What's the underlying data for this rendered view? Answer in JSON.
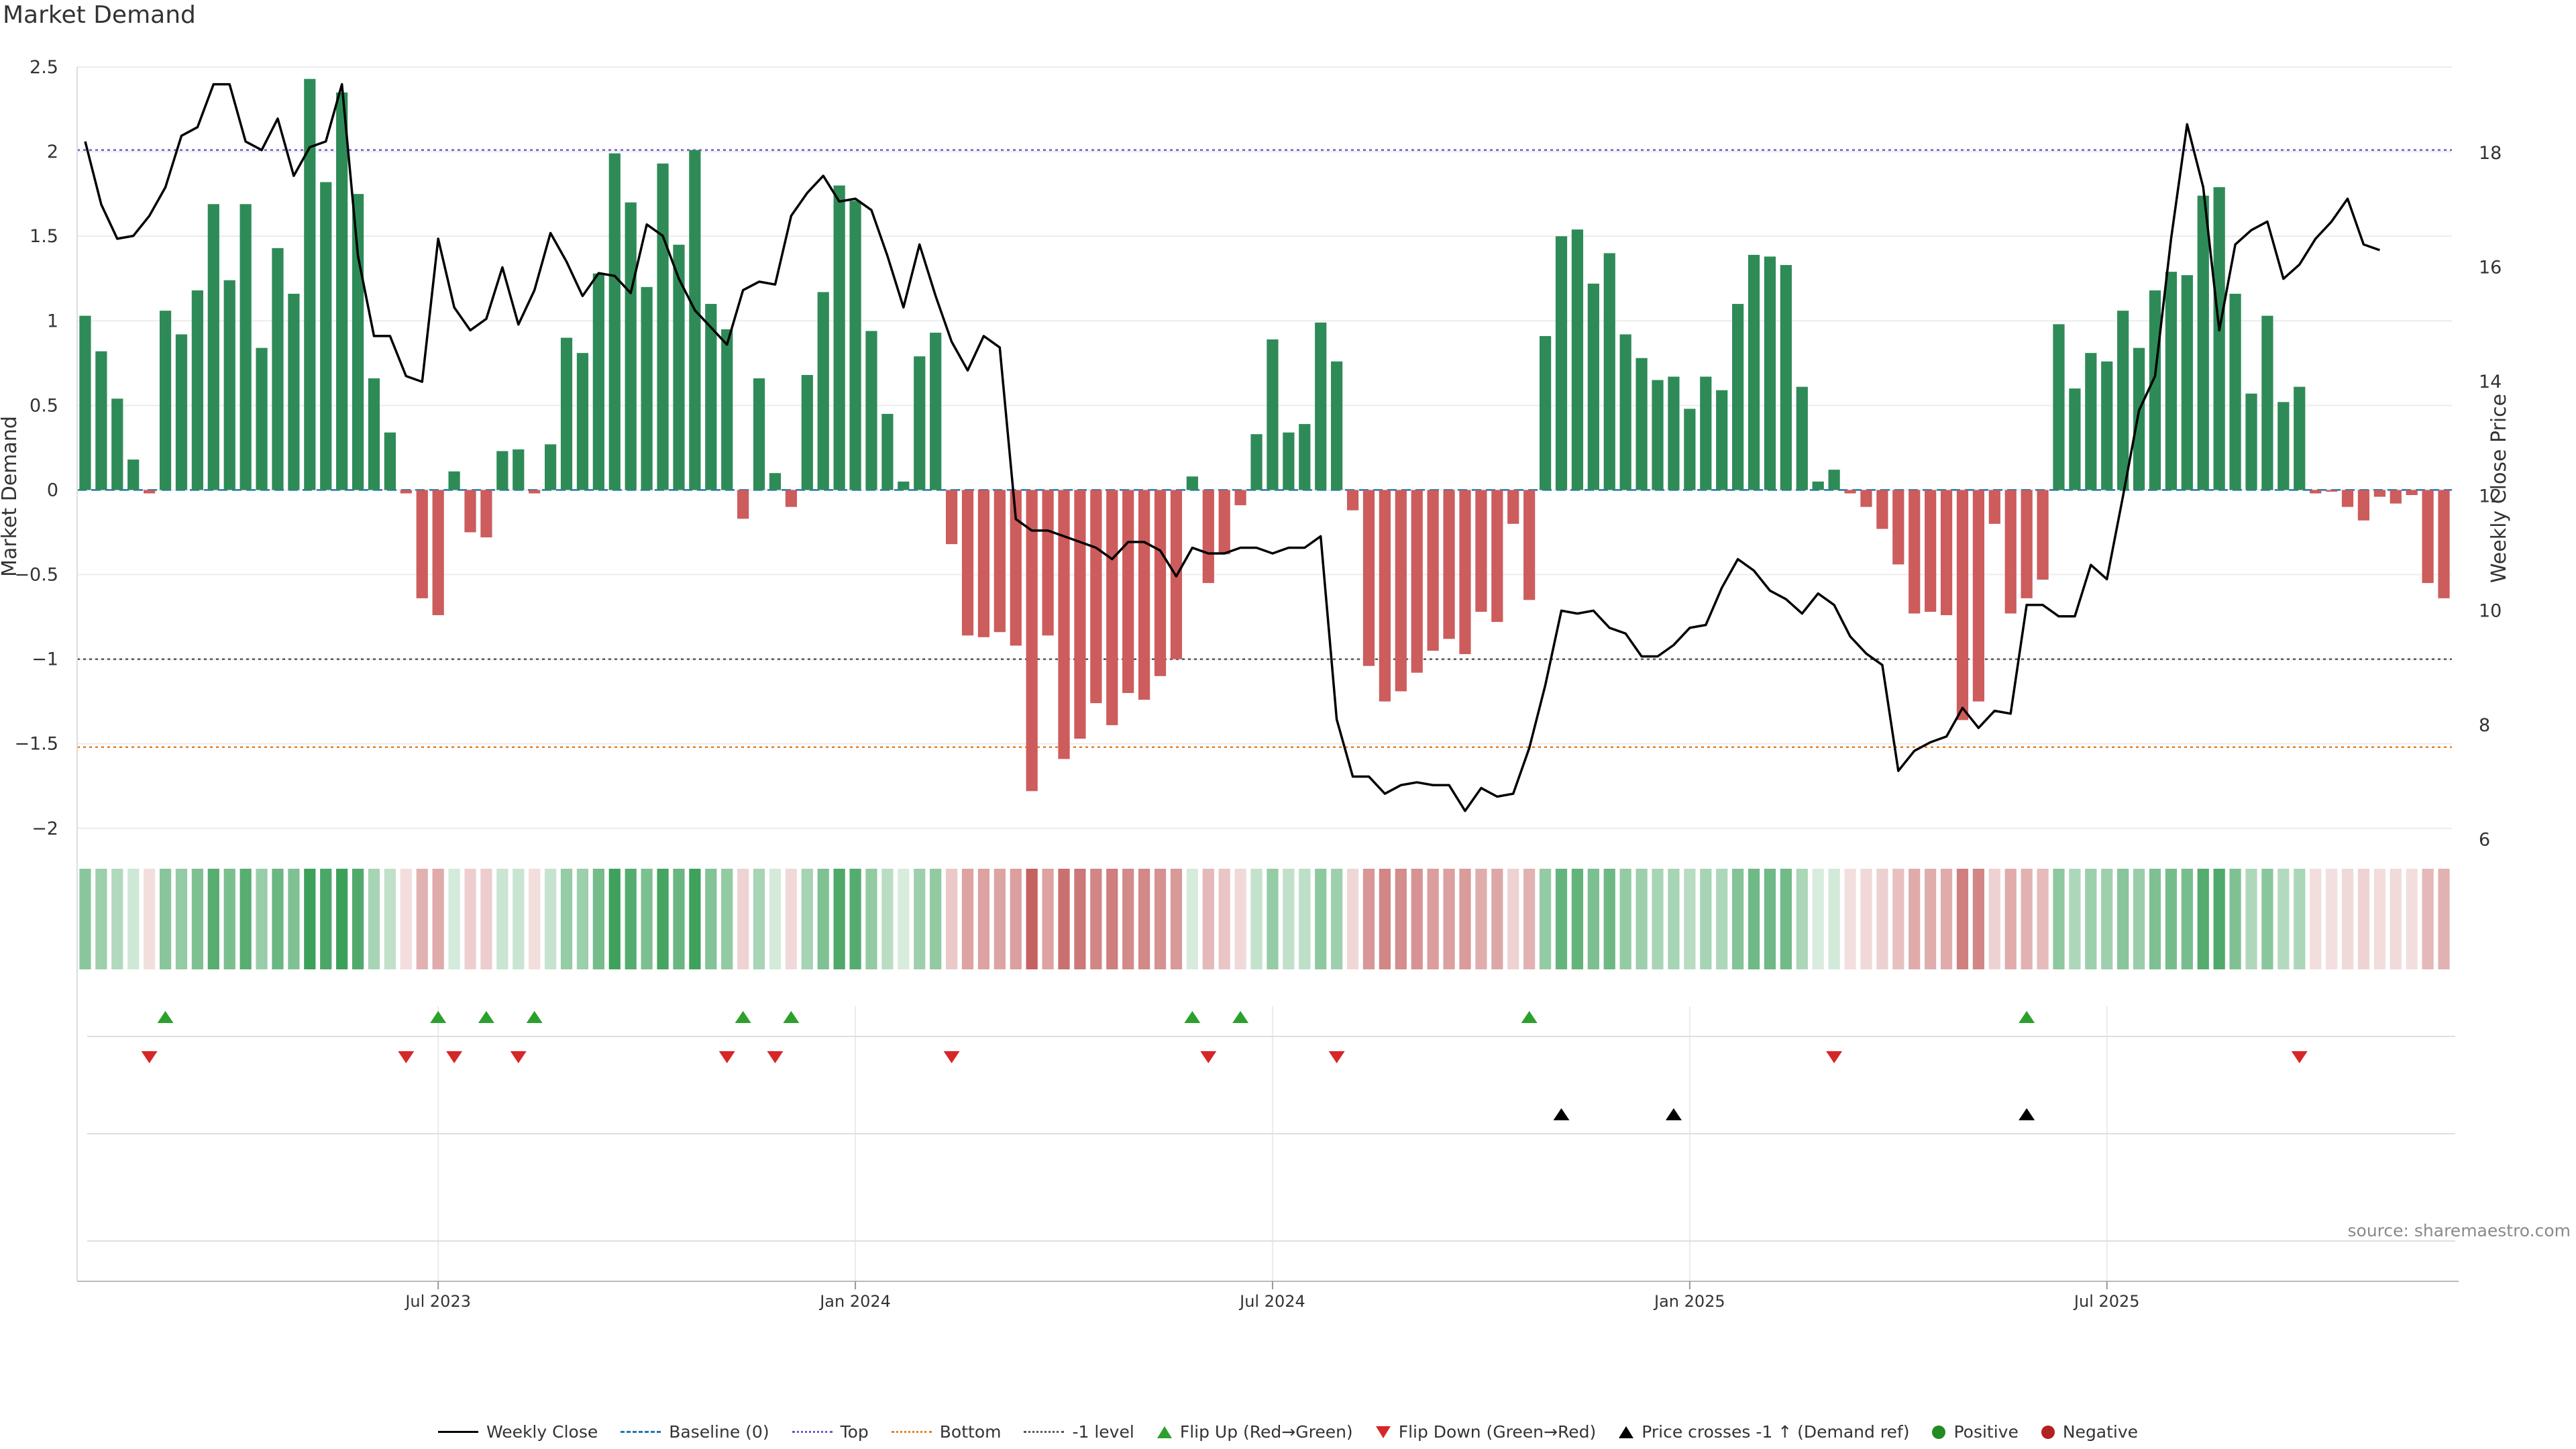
{
  "title": "Market Demand",
  "source": "source: sharemaestro.com",
  "colors": {
    "positive": "#2e8b57",
    "negative": "#cd5c5c",
    "price": "#000000",
    "top_line": "#6a5acd",
    "bottom_line": "#e67e22",
    "minus1_line": "#555555",
    "baseline": "#1f77b4",
    "flip_up": "#2ca02c",
    "flip_down": "#d62728",
    "cross": "#000000"
  },
  "legend": [
    {
      "key": "weekly_close",
      "label": "Weekly Close",
      "swatch": "line"
    },
    {
      "key": "baseline",
      "label": "Baseline (0)",
      "swatch": "dash"
    },
    {
      "key": "top",
      "label": "Top",
      "swatch": "dot"
    },
    {
      "key": "bottom",
      "label": "Bottom",
      "swatch": "dot-orange"
    },
    {
      "key": "minus1",
      "label": "-1 level",
      "swatch": "dot-gray"
    },
    {
      "key": "flip_up",
      "label": "Flip Up (Red→Green)",
      "swatch": "tri-up"
    },
    {
      "key": "flip_down",
      "label": "Flip Down (Green→Red)",
      "swatch": "tri-down"
    },
    {
      "key": "cross",
      "label": "Price crosses -1 ↑ (Demand ref)",
      "swatch": "tri-black"
    },
    {
      "key": "positive",
      "label": "Positive",
      "swatch": "circle-green"
    },
    {
      "key": "negative",
      "label": "Negative",
      "swatch": "circle-red"
    }
  ],
  "chart_data": {
    "type": "bar",
    "title": "Market Demand",
    "ylabel": "Market Demand",
    "y2label": "Weekly Close Price",
    "ylim": [
      -2.1,
      2.5
    ],
    "y2lim": [
      5.9,
      19.5
    ],
    "yticks": [
      2.5,
      2,
      1.5,
      1,
      0.5,
      0,
      -0.5,
      -1,
      -1.5,
      -2
    ],
    "ytick_labels": [
      "2.5",
      "2",
      "1.5",
      "1",
      "0.5",
      "0",
      "−0.5",
      "−1",
      "−1.5",
      "−2"
    ],
    "y2ticks": [
      18,
      16,
      14,
      12,
      10,
      8,
      6
    ],
    "reference_lines": {
      "top": 2.01,
      "bottom": -1.52,
      "minus1": -1.0,
      "baseline": 0
    },
    "x_index_range": [
      0,
      143
    ],
    "xticks": [
      {
        "index": 22,
        "label": "Jul 2023"
      },
      {
        "index": 48,
        "label": "Jan 2024"
      },
      {
        "index": 74,
        "label": "Jul 2024"
      },
      {
        "index": 100,
        "label": "Jan 2025"
      },
      {
        "index": 126,
        "label": "Jul 2025"
      }
    ],
    "demand": [
      1.03,
      0.82,
      0.54,
      0.18,
      -0.02,
      1.06,
      0.92,
      1.18,
      1.69,
      1.24,
      1.69,
      0.84,
      1.43,
      1.16,
      2.43,
      1.82,
      2.35,
      1.75,
      0.66,
      0.34,
      -0.02,
      -0.64,
      -0.74,
      0.11,
      -0.25,
      -0.28,
      0.23,
      0.24,
      -0.02,
      0.27,
      0.9,
      0.81,
      1.28,
      1.99,
      1.7,
      1.2,
      1.93,
      1.45,
      2.01,
      1.1,
      0.95,
      -0.17,
      0.66,
      0.1,
      -0.1,
      0.68,
      1.17,
      1.8,
      1.71,
      0.94,
      0.45,
      0.05,
      0.79,
      0.93,
      -0.32,
      -0.86,
      -0.87,
      -0.84,
      -0.92,
      -1.78,
      -0.86,
      -1.59,
      -1.47,
      -1.26,
      -1.39,
      -1.2,
      -1.24,
      -1.1,
      -1.0,
      0.08,
      -0.55,
      -0.38,
      -0.09,
      0.33,
      0.89,
      0.34,
      0.39,
      0.99,
      0.76,
      -0.12,
      -1.04,
      -1.25,
      -1.19,
      -1.08,
      -0.95,
      -0.88,
      -0.97,
      -0.72,
      -0.78,
      -0.2,
      -0.65,
      0.91,
      1.5,
      1.54,
      1.22,
      1.4,
      0.92,
      0.78,
      0.65,
      0.67,
      0.48,
      0.67,
      0.59,
      1.1,
      1.39,
      1.38,
      1.33,
      0.61,
      0.05,
      0.12,
      -0.02,
      -0.1,
      -0.23,
      -0.44,
      -0.73,
      -0.72,
      -0.74,
      -1.36,
      -1.25,
      -0.2,
      -0.73,
      -0.64,
      -0.53,
      0.98,
      0.6,
      0.81,
      0.76,
      1.06,
      0.84,
      1.18,
      1.29,
      1.27,
      1.74,
      1.79,
      1.16,
      0.57,
      1.03,
      0.52,
      0.61,
      -0.02,
      -0.01,
      -0.1,
      -0.18,
      -0.04,
      -0.08,
      -0.03,
      -0.55,
      -0.64
    ],
    "weekly_close": [
      18.2,
      17.1,
      16.5,
      16.55,
      16.9,
      17.4,
      18.3,
      18.45,
      19.2,
      19.2,
      18.2,
      18.05,
      18.6,
      17.6,
      18.1,
      18.2,
      19.2,
      16.2,
      14.8,
      14.8,
      14.1,
      14.0,
      16.5,
      15.3,
      14.9,
      15.1,
      16.0,
      15.0,
      15.6,
      16.6,
      16.1,
      15.5,
      15.9,
      15.85,
      15.55,
      16.75,
      16.55,
      15.8,
      15.25,
      14.95,
      14.65,
      15.6,
      15.75,
      15.7,
      16.9,
      17.3,
      17.6,
      17.15,
      17.2,
      17.0,
      16.2,
      15.3,
      16.4,
      15.5,
      14.7,
      14.2,
      14.8,
      14.6,
      11.6,
      11.4,
      11.4,
      11.3,
      11.2,
      11.1,
      10.9,
      11.2,
      11.2,
      11.05,
      10.6,
      11.1,
      11.0,
      11.0,
      11.1,
      11.1,
      11.0,
      11.1,
      11.1,
      11.3,
      8.1,
      7.1,
      7.1,
      6.8,
      6.95,
      7.0,
      6.95,
      6.95,
      6.5,
      6.9,
      6.75,
      6.8,
      7.6,
      8.7,
      10.0,
      9.95,
      10.0,
      9.7,
      9.6,
      9.2,
      9.2,
      9.4,
      9.7,
      9.75,
      10.4,
      10.9,
      10.7,
      10.35,
      10.2,
      9.95,
      10.3,
      10.1,
      9.55,
      9.25,
      9.05,
      7.2,
      7.55,
      7.7,
      7.8,
      8.3,
      7.95,
      8.25,
      8.2,
      10.1,
      10.1,
      9.9,
      9.9,
      10.8,
      10.55,
      12.0,
      13.5,
      14.1,
      16.5,
      18.5,
      17.4,
      14.9,
      16.4,
      16.65,
      16.8,
      15.8,
      16.05,
      16.5,
      16.8,
      17.2,
      16.4,
      16.3
    ],
    "flip_up_indices": [
      5,
      22,
      25,
      28,
      41,
      44,
      69,
      72,
      90,
      121
    ],
    "flip_down_indices": [
      4,
      20,
      23,
      27,
      40,
      43,
      54,
      70,
      78,
      109,
      138
    ],
    "price_cross_indices": [
      92,
      99,
      121
    ],
    "series": [
      {
        "name": "Market Demand",
        "kind": "bar"
      },
      {
        "name": "Weekly Close",
        "kind": "line",
        "axis": "right"
      }
    ]
  }
}
